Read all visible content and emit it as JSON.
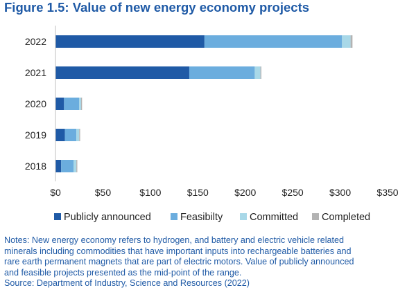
{
  "figure": {
    "title": "Figure 1.5: Value of new energy economy projects"
  },
  "chart_data": {
    "type": "bar",
    "orientation": "horizontal",
    "stacked": true,
    "categories": [
      "2022",
      "2021",
      "2020",
      "2019",
      "2018"
    ],
    "series": [
      {
        "name": "Publicly announced",
        "color": "#1f5aa6",
        "values": [
          157,
          141,
          9,
          10,
          6
        ]
      },
      {
        "name": "Feasibilty",
        "color": "#6badde",
        "values": [
          145,
          69,
          16,
          12,
          13
        ]
      },
      {
        "name": "Committed",
        "color": "#a8d8e8",
        "values": [
          9,
          6,
          2,
          3,
          3
        ]
      },
      {
        "name": "Completed",
        "color": "#b3b3b3",
        "values": [
          2,
          1,
          1,
          1,
          1
        ]
      }
    ],
    "xlim": [
      0,
      350
    ],
    "x_ticks": [
      0,
      50,
      100,
      150,
      200,
      250,
      300,
      350
    ],
    "x_tick_labels": [
      "$0",
      "$50",
      "$100",
      "$150",
      "$200",
      "$250",
      "$300",
      "$350"
    ],
    "xlabel": "",
    "ylabel": "",
    "grid": false,
    "legend_position": "bottom"
  },
  "notes": {
    "lines": [
      "Notes: New energy economy refers to hydrogen, and battery and electric vehicle related",
      "minerals including commodities that have important inputs into rechargeable batteries and",
      "rare earth permanent magnets that are part of electric motors. Value of publicly announced",
      "and feasible projects presented as the mid-point of the range."
    ],
    "source": "Source: Department of Industry, Science and Resources (2022)"
  }
}
